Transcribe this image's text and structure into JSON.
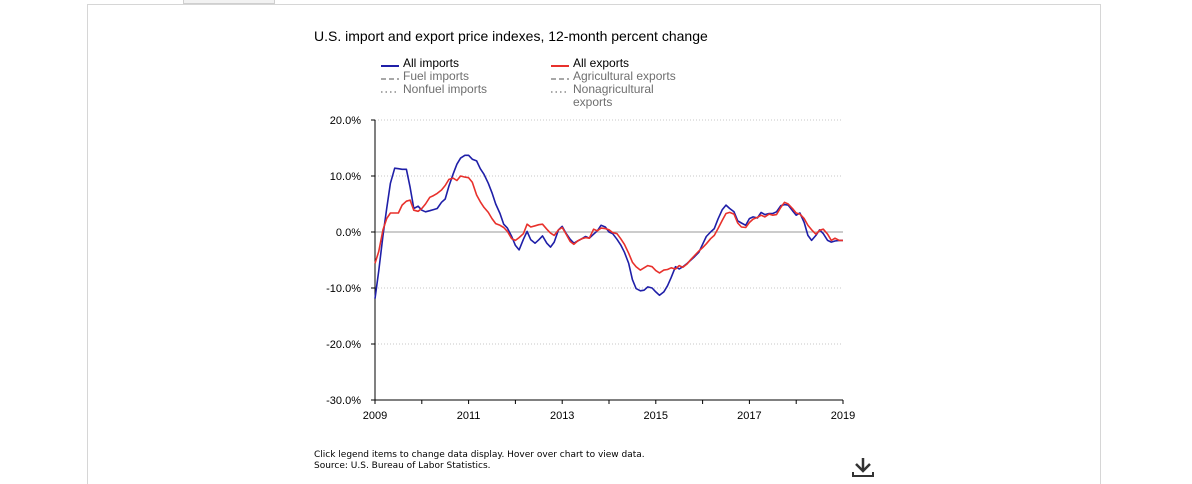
{
  "chart_data": {
    "type": "line",
    "title": "U.S. import and export price indexes, 12-month percent change",
    "xlim": [
      2009.0,
      2019.0
    ],
    "ylim": [
      -30.0,
      20.0
    ],
    "y_ticks": [
      20,
      10,
      0,
      -10,
      -20,
      -30
    ],
    "y_tick_labels": [
      "20.0%",
      "10.0%",
      "0.0%",
      "-10.0%",
      "-20.0%",
      "-30.0%"
    ],
    "x_ticks": [
      2009,
      2011,
      2013,
      2015,
      2017,
      2019
    ],
    "x_tick_labels": [
      "2009",
      "2011",
      "2013",
      "2015",
      "2017",
      "2019"
    ],
    "grid": true,
    "legend_placement": "top",
    "series": [
      {
        "name": "All imports",
        "color": "#1f1fa8",
        "style": "solid",
        "active": true,
        "points": [
          [
            2009.0,
            -11.9
          ],
          [
            2009.08,
            -7.0
          ],
          [
            2009.17,
            -0.6
          ],
          [
            2009.25,
            4.2
          ],
          [
            2009.33,
            8.7
          ],
          [
            2009.42,
            11.4
          ],
          [
            2009.5,
            11.3
          ],
          [
            2009.58,
            11.2
          ],
          [
            2009.67,
            11.2
          ],
          [
            2009.75,
            8.0
          ],
          [
            2009.83,
            4.2
          ],
          [
            2009.92,
            4.6
          ],
          [
            2010.0,
            3.9
          ],
          [
            2010.08,
            3.6
          ],
          [
            2010.17,
            3.8
          ],
          [
            2010.25,
            4.0
          ],
          [
            2010.33,
            4.2
          ],
          [
            2010.42,
            5.3
          ],
          [
            2010.5,
            5.9
          ],
          [
            2010.58,
            8.2
          ],
          [
            2010.67,
            10.4
          ],
          [
            2010.75,
            12.1
          ],
          [
            2010.83,
            13.2
          ],
          [
            2010.92,
            13.7
          ],
          [
            2011.0,
            13.7
          ],
          [
            2011.08,
            13.0
          ],
          [
            2011.17,
            12.7
          ],
          [
            2011.25,
            11.3
          ],
          [
            2011.33,
            10.3
          ],
          [
            2011.42,
            8.7
          ],
          [
            2011.5,
            7.0
          ],
          [
            2011.58,
            5.0
          ],
          [
            2011.67,
            3.3
          ],
          [
            2011.75,
            1.4
          ],
          [
            2011.83,
            0.7
          ],
          [
            2011.92,
            -0.8
          ],
          [
            2012.0,
            -2.4
          ],
          [
            2012.08,
            -3.2
          ],
          [
            2012.17,
            -1.3
          ],
          [
            2012.25,
            0.1
          ],
          [
            2012.33,
            -1.4
          ],
          [
            2012.42,
            -2.0
          ],
          [
            2012.5,
            -1.4
          ],
          [
            2012.58,
            -0.7
          ],
          [
            2012.67,
            -2.0
          ],
          [
            2012.75,
            -2.7
          ],
          [
            2012.83,
            -1.8
          ],
          [
            2012.92,
            0.4
          ],
          [
            2013.0,
            1.0
          ],
          [
            2013.08,
            -0.2
          ],
          [
            2013.17,
            -1.3
          ],
          [
            2013.25,
            -2.0
          ],
          [
            2013.33,
            -1.6
          ],
          [
            2013.42,
            -1.2
          ],
          [
            2013.5,
            -0.8
          ],
          [
            2013.58,
            -1.1
          ],
          [
            2013.67,
            -0.4
          ],
          [
            2013.75,
            0.2
          ],
          [
            2013.83,
            1.2
          ],
          [
            2013.92,
            0.9
          ],
          [
            2014.0,
            0.0
          ],
          [
            2014.08,
            -0.3
          ],
          [
            2014.17,
            -1.3
          ],
          [
            2014.25,
            -2.3
          ],
          [
            2014.33,
            -3.6
          ],
          [
            2014.42,
            -5.6
          ],
          [
            2014.5,
            -8.5
          ],
          [
            2014.58,
            -10.1
          ],
          [
            2014.67,
            -10.5
          ],
          [
            2014.75,
            -10.4
          ],
          [
            2014.83,
            -9.8
          ],
          [
            2014.92,
            -10.0
          ],
          [
            2015.0,
            -10.7
          ],
          [
            2015.08,
            -11.3
          ],
          [
            2015.17,
            -10.7
          ],
          [
            2015.25,
            -9.6
          ],
          [
            2015.33,
            -8.1
          ],
          [
            2015.42,
            -6.2
          ],
          [
            2015.5,
            -6.6
          ],
          [
            2015.58,
            -6.2
          ],
          [
            2015.67,
            -5.6
          ],
          [
            2015.75,
            -5.0
          ],
          [
            2015.83,
            -4.4
          ],
          [
            2015.92,
            -3.6
          ],
          [
            2016.0,
            -2.2
          ],
          [
            2016.08,
            -0.8
          ],
          [
            2016.17,
            0.0
          ],
          [
            2016.25,
            0.6
          ],
          [
            2016.33,
            2.3
          ],
          [
            2016.42,
            4.0
          ],
          [
            2016.5,
            4.8
          ],
          [
            2016.58,
            4.2
          ],
          [
            2016.67,
            3.6
          ],
          [
            2016.75,
            2.0
          ],
          [
            2016.83,
            1.6
          ],
          [
            2016.92,
            1.2
          ],
          [
            2017.0,
            2.4
          ],
          [
            2017.08,
            2.7
          ],
          [
            2017.17,
            2.5
          ],
          [
            2017.25,
            3.5
          ],
          [
            2017.33,
            3.1
          ],
          [
            2017.42,
            3.3
          ],
          [
            2017.5,
            3.3
          ],
          [
            2017.58,
            3.6
          ],
          [
            2017.67,
            4.7
          ],
          [
            2017.75,
            4.9
          ],
          [
            2017.83,
            4.8
          ],
          [
            2017.92,
            3.8
          ],
          [
            2018.0,
            3.0
          ],
          [
            2018.08,
            3.4
          ],
          [
            2018.17,
            1.7
          ],
          [
            2018.25,
            -0.6
          ],
          [
            2018.33,
            -1.5
          ],
          [
            2018.42,
            -0.6
          ],
          [
            2018.5,
            0.4
          ],
          [
            2018.58,
            -0.3
          ],
          [
            2018.67,
            -1.5
          ],
          [
            2018.75,
            -1.8
          ],
          [
            2018.83,
            -1.6
          ],
          [
            2018.92,
            -1.5
          ],
          [
            2019.0,
            -1.5
          ]
        ]
      },
      {
        "name": "Fuel imports",
        "color": "#8c8c8c",
        "style": "dashed",
        "active": false,
        "points": []
      },
      {
        "name": "Nonfuel imports",
        "color": "#8c8c8c",
        "style": "dotted",
        "active": false,
        "points": []
      },
      {
        "name": "All exports",
        "color": "#e8312c",
        "style": "solid",
        "active": true,
        "points": [
          [
            2009.0,
            -5.6
          ],
          [
            2009.08,
            -3.5
          ],
          [
            2009.17,
            0.4
          ],
          [
            2009.25,
            2.4
          ],
          [
            2009.33,
            3.4
          ],
          [
            2009.42,
            3.4
          ],
          [
            2009.5,
            3.4
          ],
          [
            2009.58,
            4.8
          ],
          [
            2009.67,
            5.5
          ],
          [
            2009.75,
            5.7
          ],
          [
            2009.83,
            3.9
          ],
          [
            2009.92,
            3.7
          ],
          [
            2010.0,
            4.2
          ],
          [
            2010.08,
            5.0
          ],
          [
            2010.17,
            6.2
          ],
          [
            2010.25,
            6.5
          ],
          [
            2010.33,
            6.9
          ],
          [
            2010.42,
            7.5
          ],
          [
            2010.5,
            8.3
          ],
          [
            2010.58,
            9.4
          ],
          [
            2010.67,
            9.6
          ],
          [
            2010.75,
            9.2
          ],
          [
            2010.83,
            10.0
          ],
          [
            2010.92,
            9.8
          ],
          [
            2011.0,
            9.7
          ],
          [
            2011.08,
            8.9
          ],
          [
            2011.17,
            6.6
          ],
          [
            2011.25,
            5.4
          ],
          [
            2011.33,
            4.4
          ],
          [
            2011.42,
            3.5
          ],
          [
            2011.5,
            2.4
          ],
          [
            2011.58,
            1.5
          ],
          [
            2011.67,
            1.2
          ],
          [
            2011.75,
            0.8
          ],
          [
            2011.83,
            0.1
          ],
          [
            2011.92,
            -1.2
          ],
          [
            2012.0,
            -1.5
          ],
          [
            2012.08,
            -1.0
          ],
          [
            2012.17,
            -0.3
          ],
          [
            2012.25,
            1.4
          ],
          [
            2012.33,
            0.9
          ],
          [
            2012.42,
            1.1
          ],
          [
            2012.5,
            1.3
          ],
          [
            2012.58,
            1.4
          ],
          [
            2012.67,
            0.5
          ],
          [
            2012.75,
            -0.2
          ],
          [
            2012.83,
            -0.6
          ],
          [
            2012.92,
            0.4
          ],
          [
            2013.0,
            0.8
          ],
          [
            2013.08,
            -0.3
          ],
          [
            2013.17,
            -1.7
          ],
          [
            2013.25,
            -2.2
          ],
          [
            2013.33,
            -1.6
          ],
          [
            2013.42,
            -1.2
          ],
          [
            2013.5,
            -1.0
          ],
          [
            2013.58,
            -1.1
          ],
          [
            2013.67,
            0.5
          ],
          [
            2013.75,
            0.2
          ],
          [
            2013.83,
            0.7
          ],
          [
            2013.92,
            0.6
          ],
          [
            2014.0,
            0.4
          ],
          [
            2014.08,
            -0.1
          ],
          [
            2014.17,
            -0.3
          ],
          [
            2014.25,
            -1.2
          ],
          [
            2014.33,
            -2.2
          ],
          [
            2014.42,
            -3.8
          ],
          [
            2014.5,
            -5.4
          ],
          [
            2014.58,
            -6.2
          ],
          [
            2014.67,
            -6.8
          ],
          [
            2014.75,
            -6.4
          ],
          [
            2014.83,
            -6.0
          ],
          [
            2014.92,
            -6.2
          ],
          [
            2015.0,
            -6.9
          ],
          [
            2015.08,
            -7.3
          ],
          [
            2015.17,
            -6.8
          ],
          [
            2015.25,
            -6.7
          ],
          [
            2015.33,
            -6.4
          ],
          [
            2015.42,
            -6.6
          ],
          [
            2015.5,
            -6.0
          ],
          [
            2015.58,
            -6.3
          ],
          [
            2015.67,
            -5.7
          ],
          [
            2015.75,
            -4.9
          ],
          [
            2015.83,
            -4.2
          ],
          [
            2015.92,
            -3.4
          ],
          [
            2016.0,
            -2.8
          ],
          [
            2016.08,
            -2.1
          ],
          [
            2016.17,
            -1.2
          ],
          [
            2016.25,
            -0.6
          ],
          [
            2016.33,
            0.6
          ],
          [
            2016.42,
            2.1
          ],
          [
            2016.5,
            3.3
          ],
          [
            2016.58,
            3.5
          ],
          [
            2016.67,
            3.2
          ],
          [
            2016.75,
            1.6
          ],
          [
            2016.83,
            0.9
          ],
          [
            2016.92,
            0.8
          ],
          [
            2017.0,
            1.7
          ],
          [
            2017.08,
            2.3
          ],
          [
            2017.17,
            2.6
          ],
          [
            2017.25,
            3.0
          ],
          [
            2017.33,
            2.7
          ],
          [
            2017.42,
            3.2
          ],
          [
            2017.5,
            3.0
          ],
          [
            2017.58,
            3.1
          ],
          [
            2017.67,
            4.4
          ],
          [
            2017.75,
            5.3
          ],
          [
            2017.83,
            5.0
          ],
          [
            2017.92,
            4.2
          ],
          [
            2018.0,
            3.4
          ],
          [
            2018.08,
            3.2
          ],
          [
            2018.17,
            2.4
          ],
          [
            2018.25,
            1.2
          ],
          [
            2018.33,
            0.4
          ],
          [
            2018.42,
            -0.4
          ],
          [
            2018.5,
            0.3
          ],
          [
            2018.58,
            0.5
          ],
          [
            2018.67,
            -0.4
          ],
          [
            2018.75,
            -1.5
          ],
          [
            2018.83,
            -1.1
          ],
          [
            2018.92,
            -1.5
          ],
          [
            2019.0,
            -1.5
          ]
        ]
      },
      {
        "name": "Agricultural exports",
        "color": "#8c8c8c",
        "style": "dashed",
        "active": false,
        "points": []
      },
      {
        "name": "Nonagricultural exports",
        "color": "#8c8c8c",
        "style": "dotted",
        "active": false,
        "points": []
      }
    ]
  },
  "legend": {
    "all_imports": "All imports",
    "fuel_imports": "Fuel imports",
    "nonfuel_imports": "Nonfuel imports",
    "all_exports": "All exports",
    "agricultural_exports": "Agricultural exports",
    "nonagricultural_exports_line1": "Nonagricultural",
    "nonagricultural_exports_line2": "exports"
  },
  "footer": {
    "instructions": "Click legend items to change data display. Hover over chart to view data.",
    "source": "Source: U.S. Bureau of Labor Statistics."
  },
  "icons": {
    "download": "download-icon"
  }
}
